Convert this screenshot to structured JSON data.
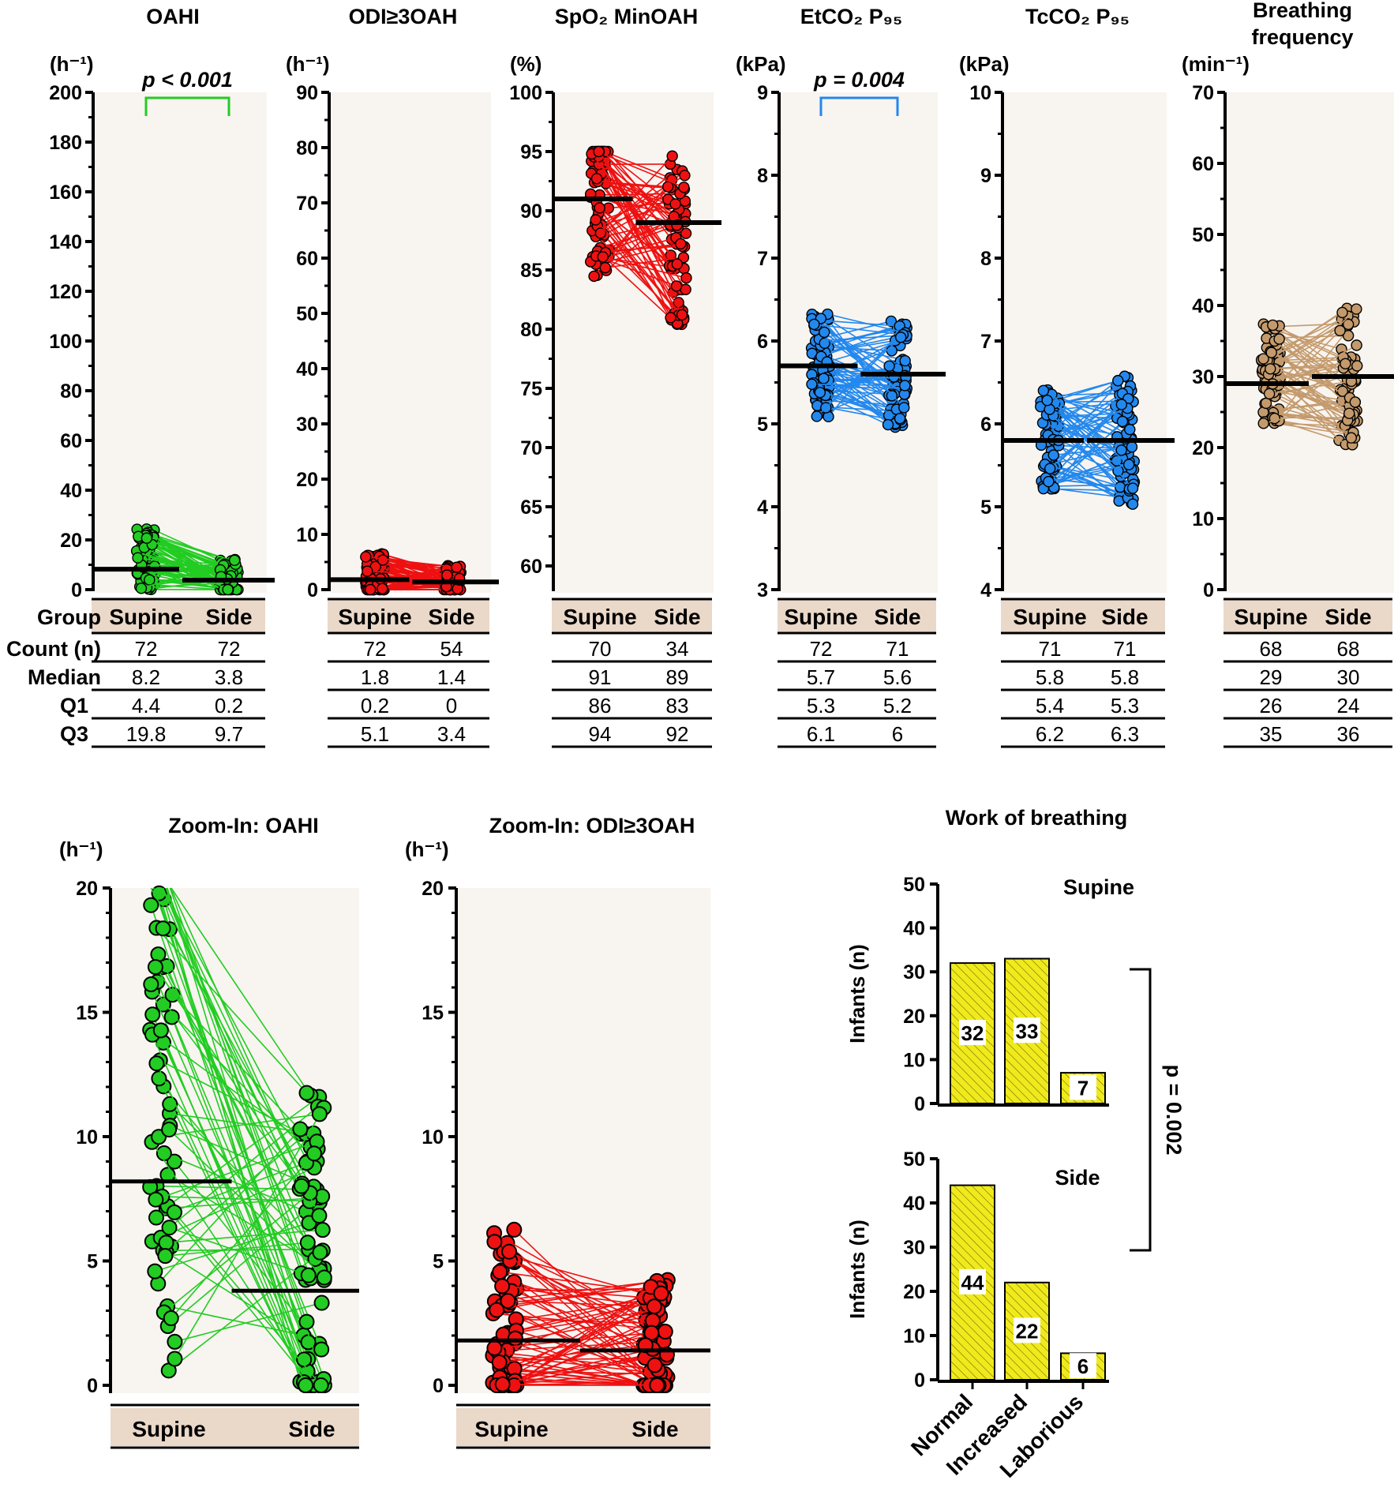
{
  "chart_data": {
    "type": "paired-scatter",
    "table_row_labels": {
      "group": "Group",
      "count": "Count (n)",
      "median": "Median",
      "q1": "Q1",
      "q3": "Q3"
    },
    "groups": [
      "Supine",
      "Side"
    ],
    "panels": [
      {
        "id": "oahi",
        "title": "OAHI",
        "unit": "(h⁻¹)",
        "ylim": [
          0,
          200
        ],
        "yticks": [
          0,
          20,
          40,
          60,
          80,
          100,
          120,
          140,
          160,
          180,
          200
        ],
        "color": "#22cc22",
        "medians": [
          8.2,
          3.8
        ],
        "pvalue": "p < 0.001",
        "table": {
          "count": [
            "72",
            "72"
          ],
          "median": [
            "8.2",
            "3.8"
          ],
          "q1": [
            "4.4",
            "0.2"
          ],
          "q3": [
            "19.8",
            "9.7"
          ]
        }
      },
      {
        "id": "odi",
        "title": "ODI≥3OAH",
        "unit": "(h⁻¹)",
        "ylim": [
          0,
          90
        ],
        "yticks": [
          0,
          10,
          20,
          30,
          40,
          50,
          60,
          70,
          80,
          90
        ],
        "color": "#ee1111",
        "medians": [
          1.8,
          1.4
        ],
        "table": {
          "count": [
            "72",
            "54"
          ],
          "median": [
            "1.8",
            "1.4"
          ],
          "q1": [
            "0.2",
            "0"
          ],
          "q3": [
            "5.1",
            "3.4"
          ]
        }
      },
      {
        "id": "spo2",
        "title": "SpO₂ MinOAH",
        "unit": "(%)",
        "ylim": [
          58,
          100
        ],
        "yticks": [
          60,
          65,
          70,
          75,
          80,
          85,
          90,
          95,
          100
        ],
        "color": "#ee1111",
        "medians": [
          91,
          89
        ],
        "table": {
          "count": [
            "70",
            "34"
          ],
          "median": [
            "91",
            "89"
          ],
          "q1": [
            "86",
            "83"
          ],
          "q3": [
            "94",
            "92"
          ]
        }
      },
      {
        "id": "etco2",
        "title": "EtCO₂ P₉₅",
        "unit": "(kPa)",
        "ylim": [
          3,
          9
        ],
        "yticks": [
          3,
          4,
          5,
          6,
          7,
          8,
          9
        ],
        "color": "#2288ee",
        "medians": [
          5.7,
          5.6
        ],
        "pvalue": "p = 0.004",
        "table": {
          "count": [
            "72",
            "71"
          ],
          "median": [
            "5.7",
            "5.6"
          ],
          "q1": [
            "5.3",
            "5.2"
          ],
          "q3": [
            "6.1",
            "6"
          ]
        }
      },
      {
        "id": "tcco2",
        "title": "TcCO₂ P₉₅",
        "unit": "(kPa)",
        "ylim": [
          4,
          10
        ],
        "yticks": [
          4,
          5,
          6,
          7,
          8,
          9,
          10
        ],
        "color": "#2288ee",
        "medians": [
          5.8,
          5.8
        ],
        "table": {
          "count": [
            "71",
            "71"
          ],
          "median": [
            "5.8",
            "5.8"
          ],
          "q1": [
            "5.4",
            "5.3"
          ],
          "q3": [
            "6.2",
            "6.3"
          ]
        }
      },
      {
        "id": "bf",
        "title": "Breathing frequency",
        "title_lines": [
          "Breathing",
          "frequency"
        ],
        "unit": "(min⁻¹)",
        "ylim": [
          0,
          70
        ],
        "yticks": [
          0,
          10,
          20,
          30,
          40,
          50,
          60,
          70
        ],
        "color": "#c49a6c",
        "medians": [
          29,
          30
        ],
        "table": {
          "count": [
            "68",
            "68"
          ],
          "median": [
            "29",
            "30"
          ],
          "q1": [
            "26",
            "24"
          ],
          "q3": [
            "35",
            "36"
          ]
        }
      }
    ],
    "zoom_panels": [
      {
        "id": "zoom-oahi",
        "title": "Zoom-In: OAHI",
        "unit": "(h⁻¹)",
        "ylim": [
          0,
          20
        ],
        "yticks": [
          0,
          5,
          10,
          15,
          20
        ],
        "color": "#22cc22",
        "medians": [
          8.2,
          3.8
        ]
      },
      {
        "id": "zoom-odi",
        "title": "Zoom-In: ODI≥3OAH",
        "unit": "(h⁻¹)",
        "ylim": [
          0,
          20
        ],
        "yticks": [
          0,
          5,
          10,
          15,
          20
        ],
        "color": "#ee1111",
        "medians": [
          1.8,
          1.4
        ]
      }
    ],
    "work_of_breathing": {
      "type": "bar",
      "title": "Work of breathing",
      "ylabel": "Infants (n)",
      "categories": [
        "Normal",
        "Increased",
        "Laborious"
      ],
      "ylim": [
        0,
        50
      ],
      "yticks": [
        0,
        10,
        20,
        30,
        40,
        50
      ],
      "pvalue": "p = 0.002",
      "series": [
        {
          "name": "Supine",
          "values": [
            32,
            33,
            7
          ],
          "labels": [
            "32",
            "33",
            "7"
          ]
        },
        {
          "name": "Side",
          "values": [
            44,
            22,
            6
          ],
          "labels": [
            "44",
            "22",
            "6"
          ]
        }
      ],
      "bar_color": "#f0ea1c"
    }
  }
}
